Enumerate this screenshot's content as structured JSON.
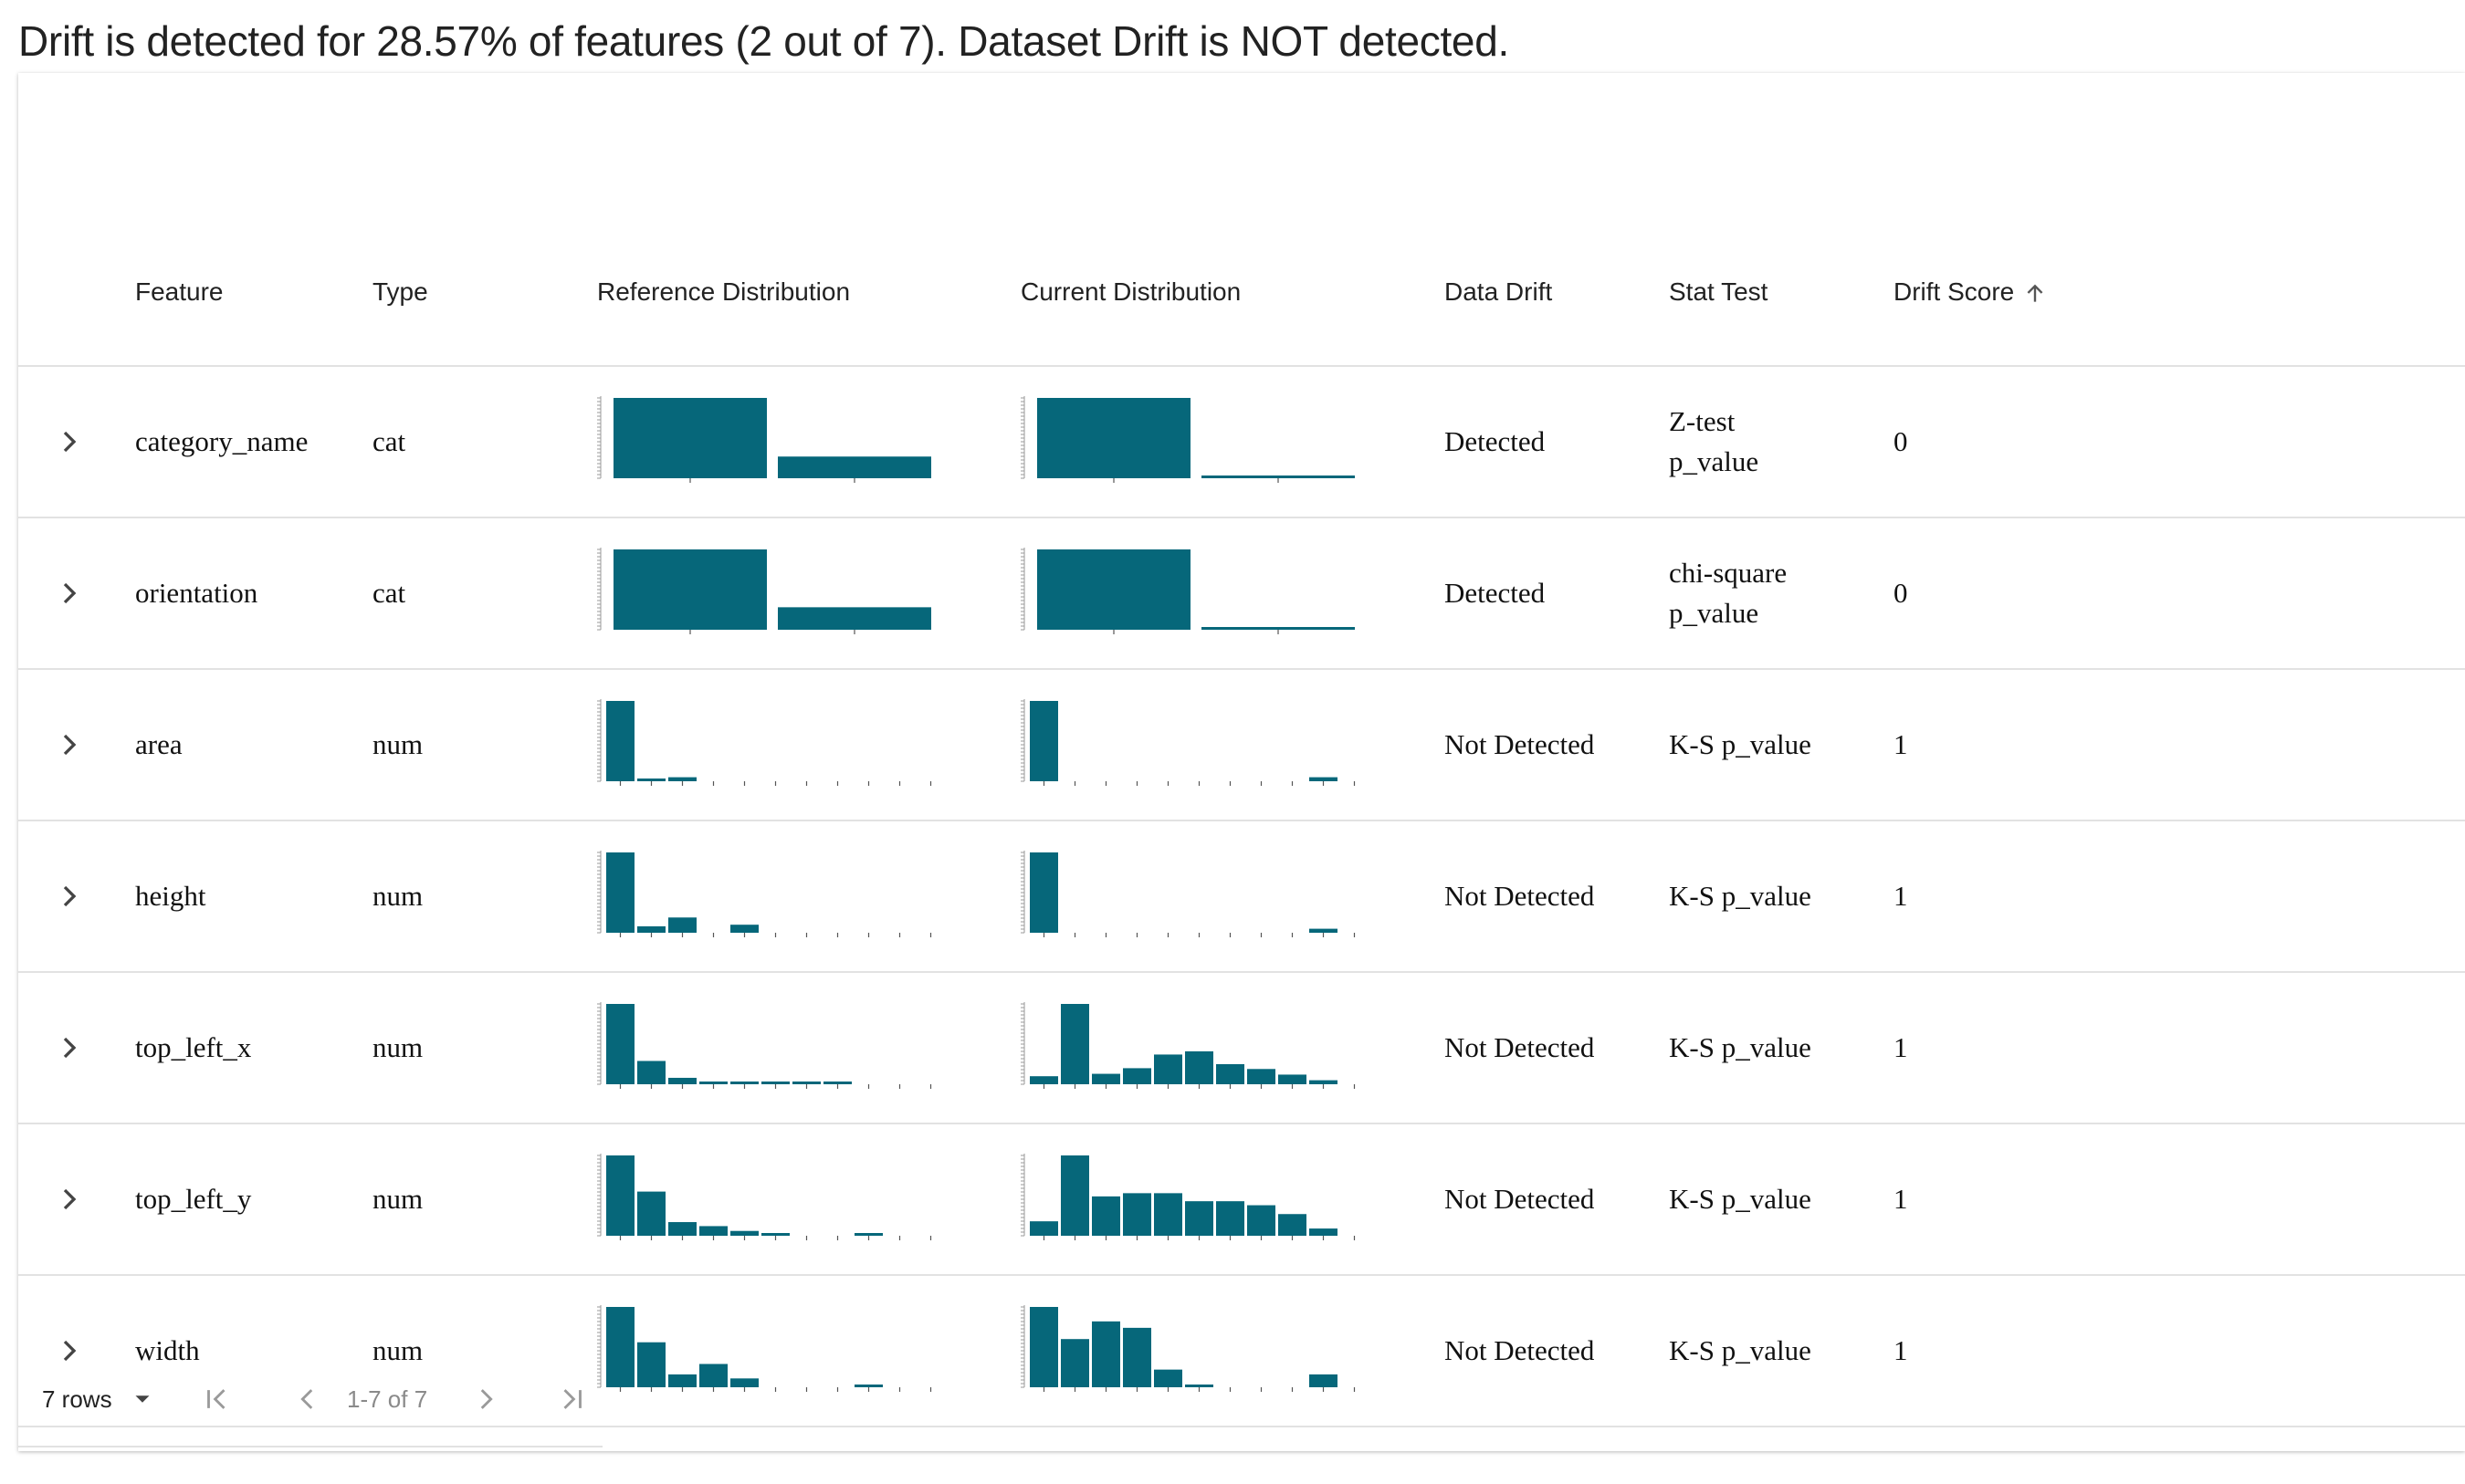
{
  "summary": "Drift is detected for 28.57% of features (2 out of 7). Dataset Drift is NOT detected.",
  "colors": {
    "bar": "#06677a",
    "border": "#e2e2e2",
    "text": "#222222",
    "muted": "#8a8a8a"
  },
  "table": {
    "headers": {
      "feature": "Feature",
      "type": "Type",
      "reference": "Reference Distribution",
      "current": "Current Distribution",
      "drift": "Data Drift",
      "stat": "Stat Test",
      "score": "Drift Score"
    },
    "sort_icon": "arrow-up-icon",
    "rows": [
      {
        "feature": "category_name",
        "type": "cat",
        "drift": "Detected",
        "stat_line1": "Z-test",
        "stat_line2": "p_value",
        "score": "0",
        "ref": [
          1.0,
          0.27
        ],
        "cur": [
          1.0,
          0.03
        ]
      },
      {
        "feature": "orientation",
        "type": "cat",
        "drift": "Detected",
        "stat_line1": "chi-square",
        "stat_line2": "p_value",
        "score": "0",
        "ref": [
          1.0,
          0.28
        ],
        "cur": [
          1.0,
          0.03
        ]
      },
      {
        "feature": "area",
        "type": "num",
        "drift": "Not Detected",
        "stat_line1": "K-S p_value",
        "stat_line2": "",
        "score": "1",
        "ref": [
          1.0,
          0.02,
          0.05,
          0,
          0,
          0,
          0,
          0,
          0,
          0,
          0
        ],
        "cur": [
          1.0,
          0,
          0,
          0,
          0,
          0,
          0,
          0,
          0,
          0.05,
          0
        ]
      },
      {
        "feature": "height",
        "type": "num",
        "drift": "Not Detected",
        "stat_line1": "K-S p_value",
        "stat_line2": "",
        "score": "1",
        "ref": [
          1.0,
          0.08,
          0.19,
          0,
          0.1,
          0,
          0,
          0,
          0,
          0,
          0
        ],
        "cur": [
          1.0,
          0,
          0,
          0,
          0,
          0,
          0,
          0,
          0,
          0.05,
          0
        ]
      },
      {
        "feature": "top_left_x",
        "type": "num",
        "drift": "Not Detected",
        "stat_line1": "K-S p_value",
        "stat_line2": "",
        "score": "1",
        "ref": [
          1.0,
          0.29,
          0.08,
          0.02,
          0.02,
          0.02,
          0.02,
          0.02,
          0,
          0,
          0
        ],
        "cur": [
          0.1,
          1.0,
          0.13,
          0.2,
          0.37,
          0.41,
          0.25,
          0.19,
          0.12,
          0.05,
          0
        ]
      },
      {
        "feature": "top_left_y",
        "type": "num",
        "drift": "Not Detected",
        "stat_line1": "K-S p_value",
        "stat_line2": "",
        "score": "1",
        "ref": [
          1.0,
          0.55,
          0.17,
          0.12,
          0.06,
          0.03,
          0,
          0,
          0.02,
          0,
          0
        ],
        "cur": [
          0.18,
          1.0,
          0.49,
          0.53,
          0.53,
          0.43,
          0.43,
          0.38,
          0.27,
          0.09,
          0
        ]
      },
      {
        "feature": "width",
        "type": "num",
        "drift": "Not Detected",
        "stat_line1": "K-S p_value",
        "stat_line2": "",
        "score": "1",
        "ref": [
          1.0,
          0.56,
          0.16,
          0.29,
          0.11,
          0,
          0,
          0,
          0.03,
          0,
          0
        ],
        "cur": [
          1.0,
          0.6,
          0.82,
          0.74,
          0.22,
          0.03,
          0,
          0,
          0,
          0.16,
          0
        ]
      }
    ]
  },
  "footer": {
    "rows_per_page": "7 rows",
    "page_info": "1-7 of 7"
  }
}
